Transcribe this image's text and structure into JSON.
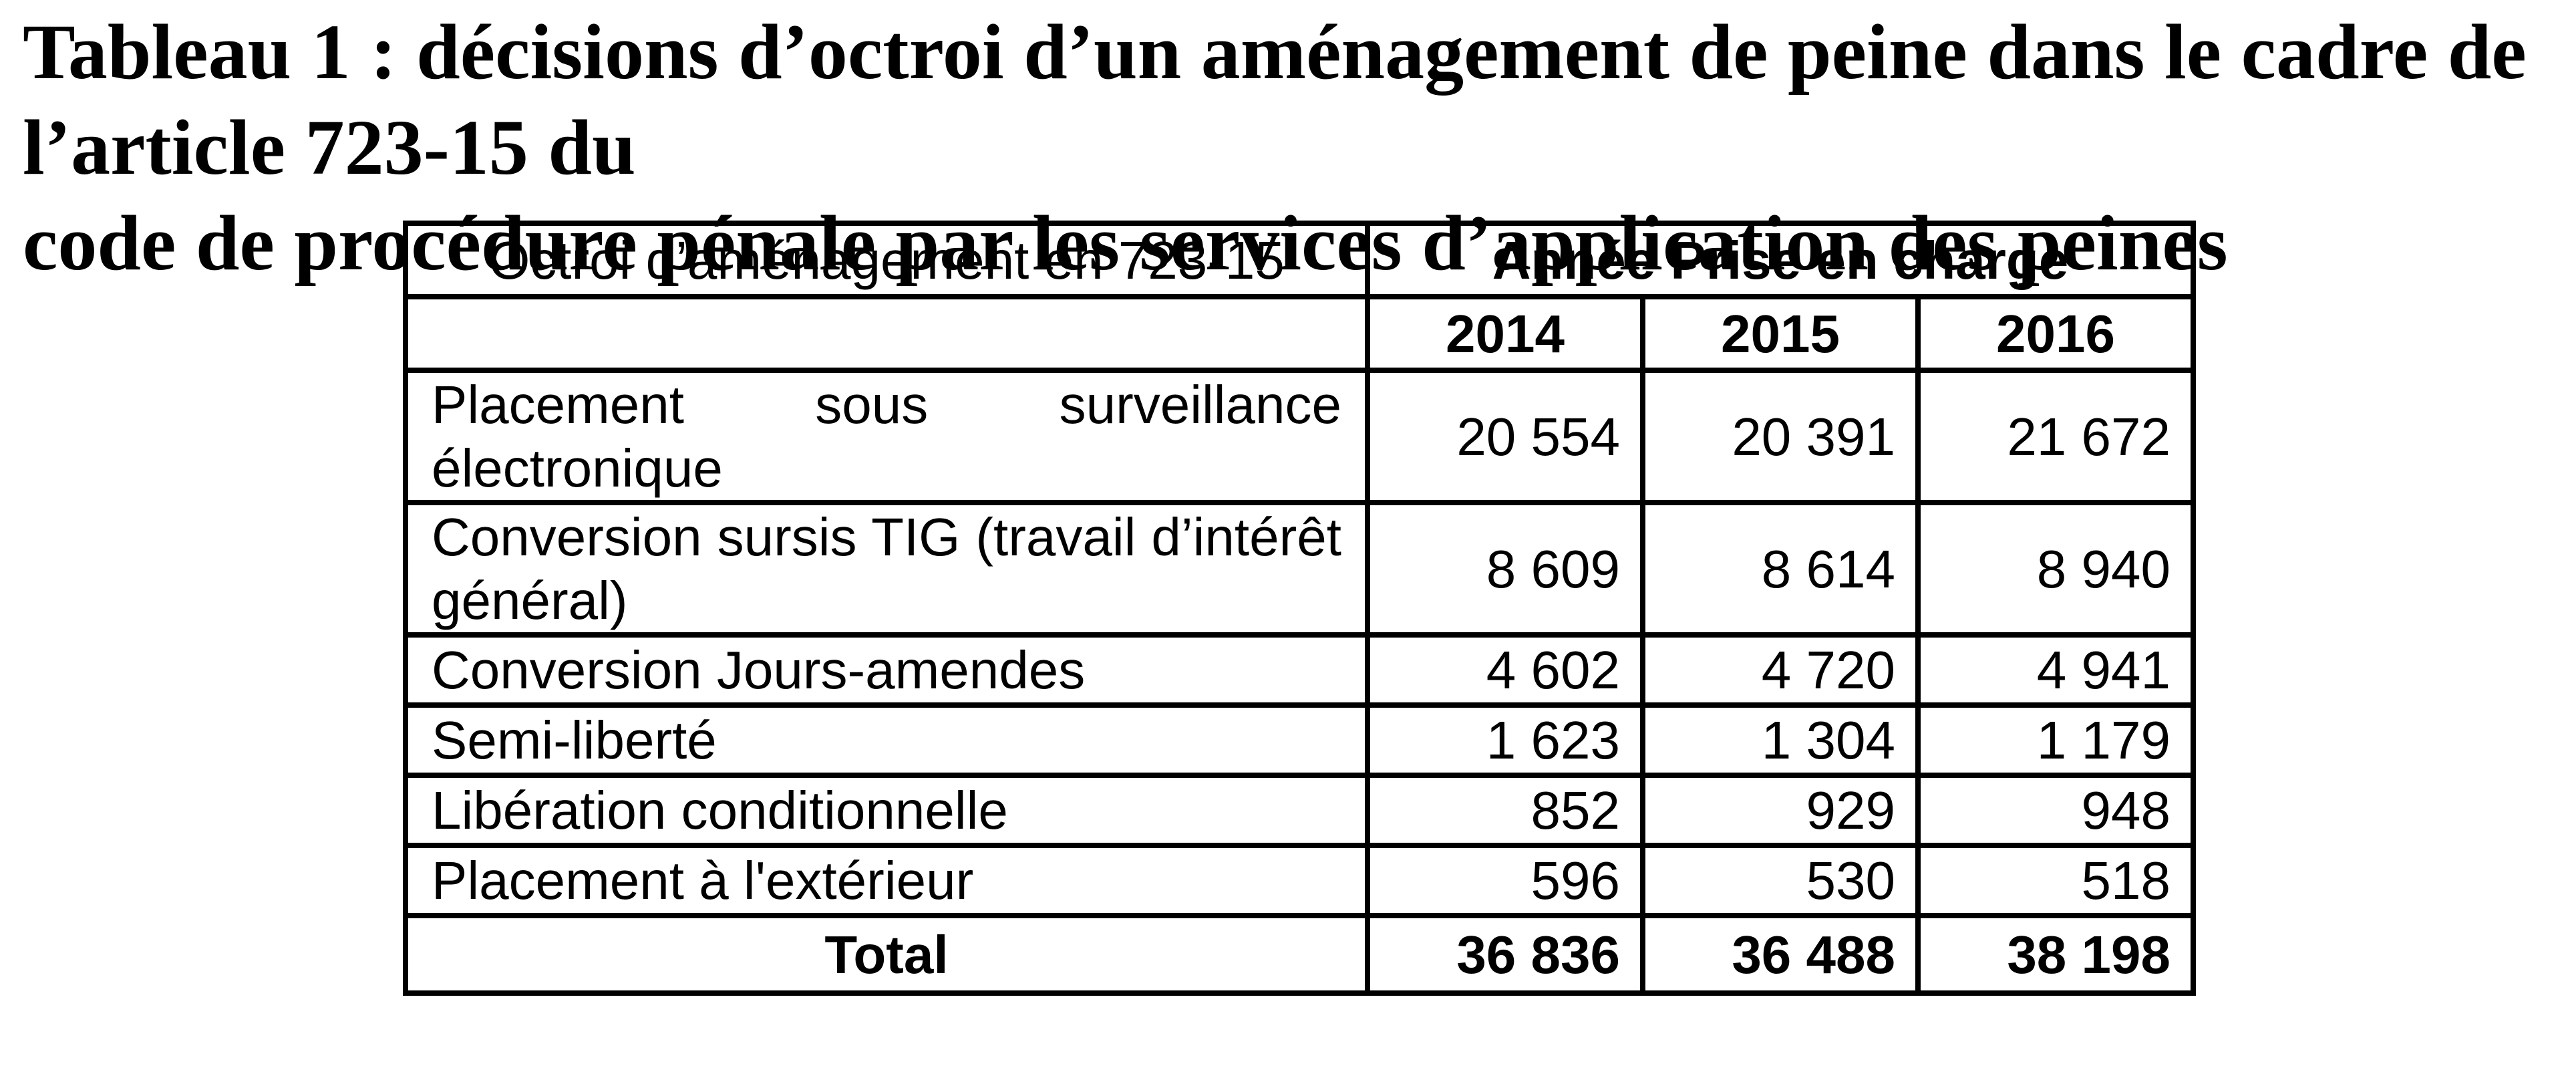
{
  "title": {
    "line1": "Tableau 1 : décisions d’octroi d’un aménagement de peine dans le cadre de l’article 723-15 du",
    "line2": "code de procédure pénale par les services d’application des peines"
  },
  "table": {
    "corner_header": "Octroi d’aménagement en 723-15",
    "year_group_header": "Année Prise en charge",
    "years": [
      "2014",
      "2015",
      "2016"
    ],
    "rows": [
      {
        "label": "Placement sous surveillance électronique",
        "values": [
          "20 554",
          "20 391",
          "21 672"
        ]
      },
      {
        "label": "Conversion sursis TIG (travail d’intérêt général)",
        "values": [
          "8 609",
          "8 614",
          "8 940"
        ]
      },
      {
        "label": "Conversion Jours-amendes",
        "values": [
          "4 602",
          "4 720",
          "4 941"
        ]
      },
      {
        "label": "Semi-liberté",
        "values": [
          "1 623",
          "1 304",
          "1 179"
        ]
      },
      {
        "label": "Libération conditionnelle",
        "values": [
          "852",
          "929",
          "948"
        ]
      },
      {
        "label": "Placement à l'extérieur",
        "values": [
          "596",
          "530",
          "518"
        ]
      }
    ],
    "total_row": {
      "label": "Total",
      "values": [
        "36 836",
        "36 488",
        "38 198"
      ]
    }
  },
  "colors": {
    "text": "#000000",
    "border": "#000000",
    "background": "#ffffff"
  }
}
